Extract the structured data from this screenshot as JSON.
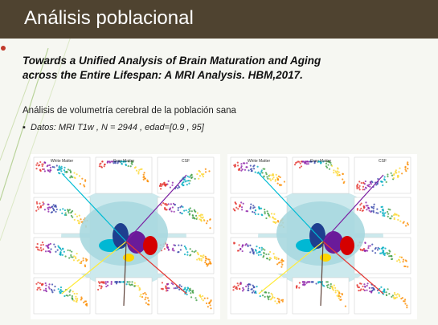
{
  "header": {
    "title": "Análisis poblacional"
  },
  "paper": {
    "line1": "Towards a Unified Analysis of Brain Maturation and Aging",
    "line2": "across the Entire Lifespan: A MRI Analysis. HBM,2017."
  },
  "body": {
    "subtitle": "Análisis de volumetría cerebral de la población sana",
    "bullet": "Datos: MRI T1w ,  N = 2944  , edad=[0.9 , 95]"
  },
  "figures": [
    {
      "panels": [
        "White Matter",
        "Gray Matter",
        "CSF"
      ]
    },
    {
      "panels": [
        "White Matter",
        "Gray Matter",
        "CSF"
      ]
    }
  ]
}
